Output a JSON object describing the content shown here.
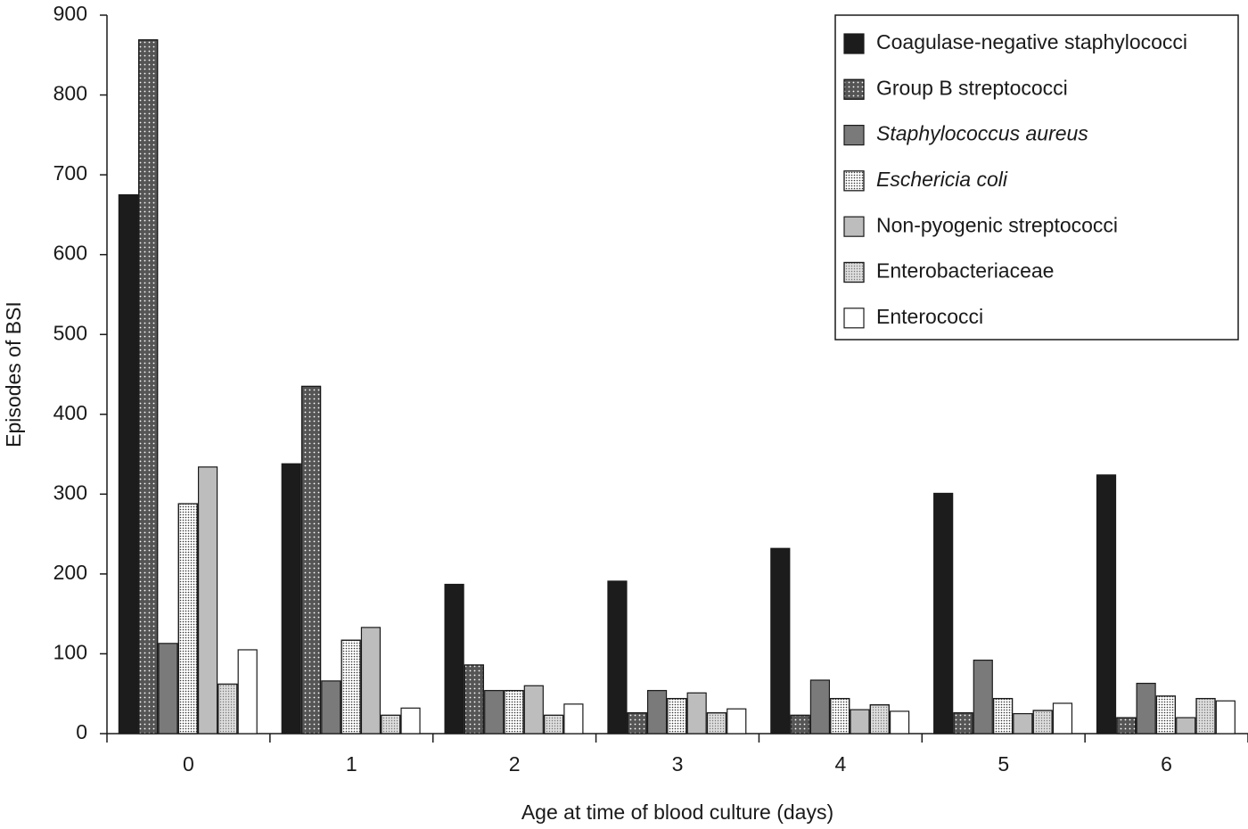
{
  "chart_data": {
    "type": "bar",
    "x_label": "Age at time of blood culture (days)",
    "y_label": "Episodes of BSI",
    "categories": [
      "0",
      "1",
      "2",
      "3",
      "4",
      "5",
      "6"
    ],
    "ylim": [
      0,
      900
    ],
    "yticks": [
      0,
      100,
      200,
      300,
      400,
      500,
      600,
      700,
      800,
      900
    ],
    "legend": "top-right",
    "series": [
      {
        "name": "Coagulase-negative staphylococci",
        "color": "#1c1c1c",
        "pattern": "solid",
        "italic": false,
        "values": [
          675,
          338,
          187,
          191,
          232,
          301,
          324
        ]
      },
      {
        "name": "Group B streptococci",
        "color": "#555555",
        "pattern": "light-dots",
        "italic": false,
        "values": [
          869,
          435,
          86,
          26,
          23,
          26,
          20
        ]
      },
      {
        "name": "Staphylococcus aureus",
        "color": "#7a7a7a",
        "pattern": "solid",
        "italic": true,
        "values": [
          113,
          66,
          54,
          54,
          67,
          92,
          63
        ]
      },
      {
        "name": "Eschericia coli",
        "color": "#ffffff",
        "pattern": "dark-dots",
        "italic": true,
        "values": [
          288,
          117,
          54,
          44,
          44,
          44,
          47
        ]
      },
      {
        "name": "Non-pyogenic streptococci",
        "color": "#bdbdbd",
        "pattern": "solid",
        "italic": false,
        "values": [
          334,
          133,
          60,
          51,
          30,
          25,
          20
        ]
      },
      {
        "name": "Enterobacteriaceae",
        "color": "#dddddd",
        "pattern": "grey-dots",
        "italic": false,
        "values": [
          62,
          23,
          23,
          26,
          36,
          29,
          44
        ]
      },
      {
        "name": "Enterococci",
        "color": "#ffffff",
        "pattern": "solid",
        "italic": false,
        "values": [
          105,
          32,
          37,
          31,
          28,
          38,
          41
        ]
      }
    ]
  }
}
